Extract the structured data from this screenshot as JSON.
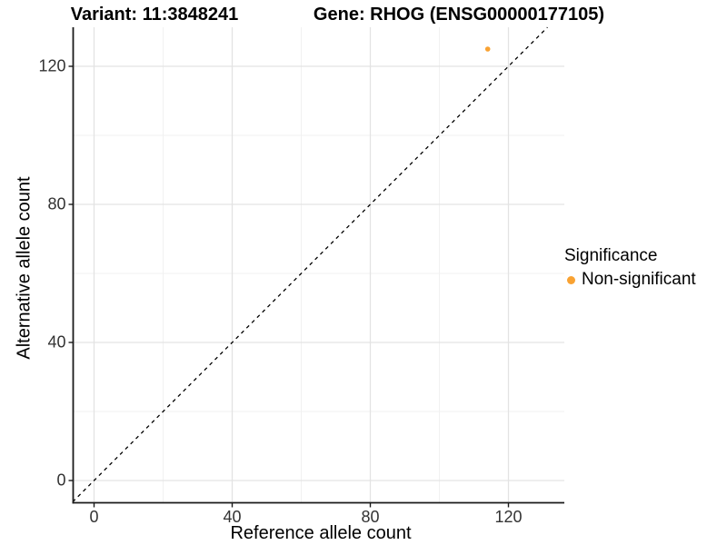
{
  "titles": {
    "variant": "Variant: 11:3848241",
    "gene": "Gene: RHOG (ENSG00000177105)"
  },
  "axes": {
    "x": {
      "title": "Reference allele count",
      "major_ticks": [
        0,
        40,
        80,
        120
      ],
      "minor_ticks": [
        20,
        60,
        100
      ]
    },
    "y": {
      "title": "Alternative allele count",
      "major_ticks": [
        0,
        40,
        80,
        120
      ],
      "minor_ticks": [
        20,
        60,
        100
      ]
    }
  },
  "legend": {
    "title": "Significance",
    "items": [
      {
        "label": "Non-significant",
        "color": "#F9A232"
      }
    ]
  },
  "chart_data": {
    "type": "scatter",
    "title_left": "Variant: 11:3848241",
    "title_right": "Gene: RHOG (ENSG00000177105)",
    "xlabel": "Reference allele count",
    "ylabel": "Alternative allele count",
    "xlim": [
      0,
      130
    ],
    "ylim": [
      0,
      125
    ],
    "xlim_expanded": [
      -6.2,
      136.2
    ],
    "ylim_expanded": [
      -6.3,
      131.3
    ],
    "grid": true,
    "legend_position": "right",
    "series": [
      {
        "name": "Non-significant",
        "color": "#F9A232",
        "points": [
          {
            "x": 114,
            "y": 125
          }
        ]
      }
    ],
    "reference_line": {
      "type": "identity y=x",
      "style": "dashed",
      "color": "#000000",
      "span": [
        -6.2,
        131.3
      ]
    }
  },
  "colors": {
    "background": "#FFFFFF",
    "grid_major": "#E3E3E3",
    "grid_minor": "#F1F1F1",
    "axis_line": "#1A1A1A",
    "tick_label": "#333333",
    "point": "#F9A232"
  }
}
